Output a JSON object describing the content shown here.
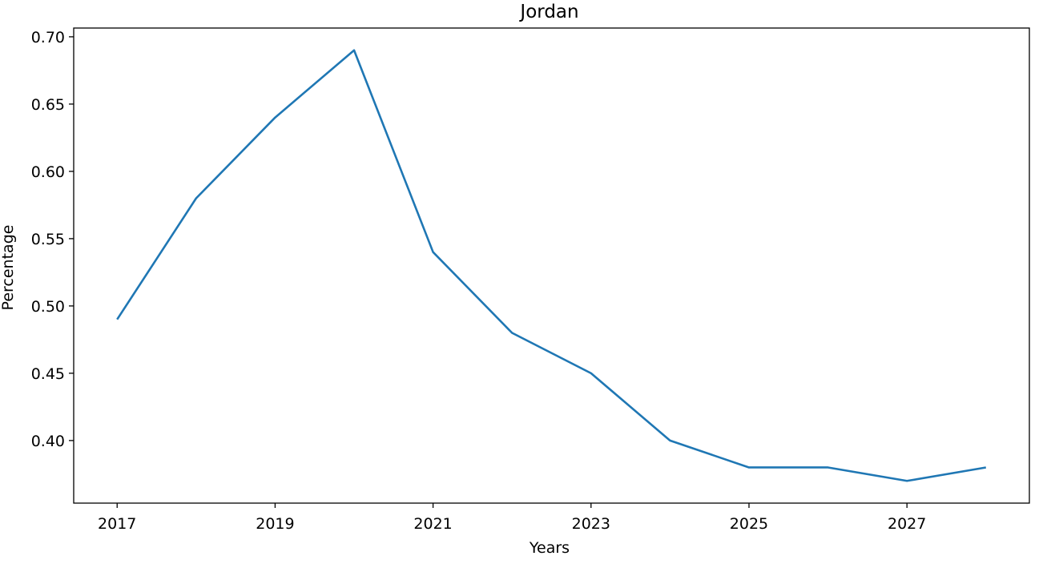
{
  "chart_data": {
    "type": "line",
    "title": "Jordan",
    "xlabel": "Years",
    "ylabel": "Percentage",
    "x": [
      2017,
      2018,
      2019,
      2020,
      2021,
      2022,
      2023,
      2024,
      2025,
      2026,
      2027,
      2028
    ],
    "series": [
      {
        "values": [
          0.49,
          0.58,
          0.64,
          0.69,
          0.54,
          0.48,
          0.45,
          0.4,
          0.38,
          0.38,
          0.37,
          0.38
        ],
        "color": "#1f77b4"
      }
    ],
    "xlim": [
      2016.45,
      2028.55
    ],
    "ylim": [
      0.3535,
      0.7065
    ],
    "xticks": [
      2017,
      2019,
      2021,
      2023,
      2025,
      2027
    ],
    "xtick_labels": [
      "2017",
      "2019",
      "2021",
      "2023",
      "2025",
      "2027"
    ],
    "yticks": [
      0.4,
      0.45,
      0.5,
      0.55,
      0.6,
      0.65,
      0.7
    ],
    "ytick_labels": [
      "0.40",
      "0.45",
      "0.50",
      "0.55",
      "0.60",
      "0.65",
      "0.70"
    ],
    "grid": false,
    "legend": "none"
  }
}
